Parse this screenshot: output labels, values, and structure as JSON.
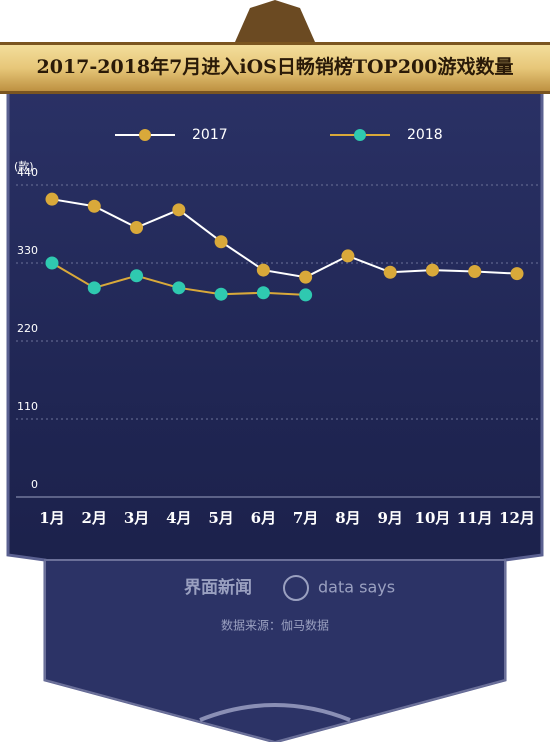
{
  "chart_data": {
    "type": "line",
    "title": "2017-2018年7月进入iOS日畅销榜TOP200游戏数量",
    "y_label": "(款)",
    "categories": [
      "1月",
      "2月",
      "3月",
      "4月",
      "5月",
      "6月",
      "7月",
      "8月",
      "9月",
      "10月",
      "11月",
      "12月"
    ],
    "series": [
      {
        "name": "2017",
        "color": "#ffffff",
        "marker_color": "#d9a93a",
        "values": [
          420,
          410,
          380,
          405,
          360,
          320,
          310,
          340,
          317,
          320,
          318,
          315
        ]
      },
      {
        "name": "2018",
        "color": "#d9a93a",
        "marker_color": "#2fc9b0",
        "values": [
          330,
          295,
          312,
          295,
          286,
          288,
          285,
          null,
          null,
          null,
          null,
          null
        ]
      }
    ],
    "ylim": [
      0,
      440
    ],
    "yticks": [
      0,
      110,
      220,
      330,
      440
    ],
    "grid": true,
    "legend": "top"
  },
  "footer": {
    "brand": "界面新闻",
    "brand2": "data says",
    "source": "数据来源：伽马数据"
  }
}
